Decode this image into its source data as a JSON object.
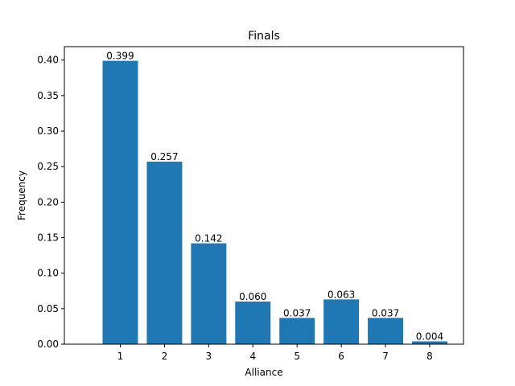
{
  "chart_data": {
    "type": "bar",
    "title": "Finals",
    "xlabel": "Alliance",
    "ylabel": "Frequency",
    "categories": [
      "1",
      "2",
      "3",
      "4",
      "5",
      "6",
      "7",
      "8"
    ],
    "values": [
      0.399,
      0.257,
      0.142,
      0.06,
      0.037,
      0.063,
      0.037,
      0.004
    ],
    "data_labels": [
      "0.399",
      "0.257",
      "0.142",
      "0.060",
      "0.037",
      "0.063",
      "0.037",
      "0.004"
    ],
    "yticks": [
      0.0,
      0.05,
      0.1,
      0.15,
      0.2,
      0.25,
      0.3,
      0.35,
      0.4
    ],
    "ytick_labels": [
      "0.00",
      "0.05",
      "0.10",
      "0.15",
      "0.20",
      "0.25",
      "0.30",
      "0.35",
      "0.40"
    ],
    "ylim": [
      0,
      0.41895
    ],
    "grid": false,
    "bar_color": "#1f77b4"
  }
}
